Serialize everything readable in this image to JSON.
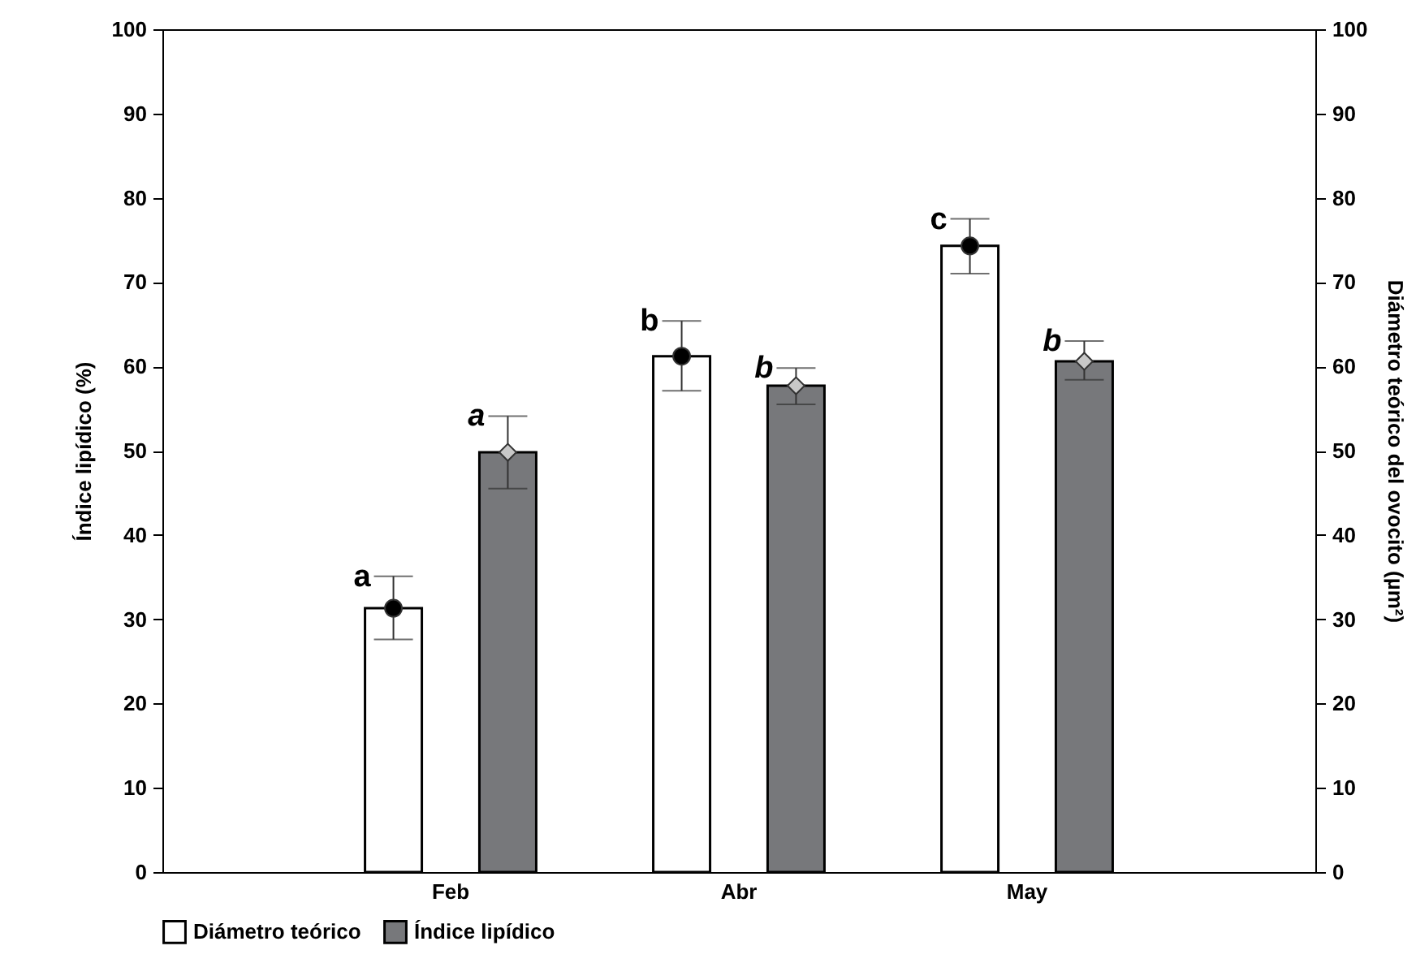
{
  "chart_data": {
    "type": "bar",
    "ylabel": "Índice lipídico (%)",
    "y2label": "Diámetro teórico del ovocito (µm²)",
    "categories": [
      "Feb",
      "Abr",
      "May"
    ],
    "series": [
      {
        "name": "Diámetro teórico",
        "color": "#ffffff",
        "axis": "y2",
        "values": [
          31.3,
          61.2,
          74.3
        ],
        "errors": [
          [
            27.6,
            35.1
          ],
          [
            57.1,
            65.4
          ],
          [
            71.0,
            77.5
          ]
        ],
        "value_labels": [
          "a",
          "b",
          "c"
        ]
      },
      {
        "name": "Índice lipídico",
        "color": "#77787b",
        "values": [
          49.8,
          57.7,
          60.6
        ],
        "errors": [
          [
            45.5,
            54.1
          ],
          [
            55.5,
            59.8
          ],
          [
            58.4,
            63.0
          ]
        ],
        "value_labels": [
          "a",
          "b",
          "b"
        ]
      },
      {
        "type": "scatter",
        "color": "#000000",
        "axis": "y2",
        "marker": "circle",
        "x": [
          "Feb",
          "Abr",
          "May"
        ],
        "values": [
          31.3,
          61.2,
          74.3
        ]
      },
      {
        "type": "scatter",
        "color": "#c8c8c8",
        "marker": "diamond",
        "x": [
          "Feb",
          "Abr",
          "May"
        ],
        "values": [
          49.8,
          57.7,
          60.6
        ]
      }
    ],
    "ylim": [
      0,
      100
    ],
    "yticks": [
      0,
      10,
      20,
      30,
      40,
      50,
      60,
      70,
      80,
      90,
      100
    ],
    "y2lim": [
      0,
      100
    ],
    "y2ticks": [
      0,
      10,
      20,
      30,
      40,
      50,
      60,
      70,
      80,
      90,
      100
    ],
    "grid": false,
    "legend": "bottom"
  }
}
